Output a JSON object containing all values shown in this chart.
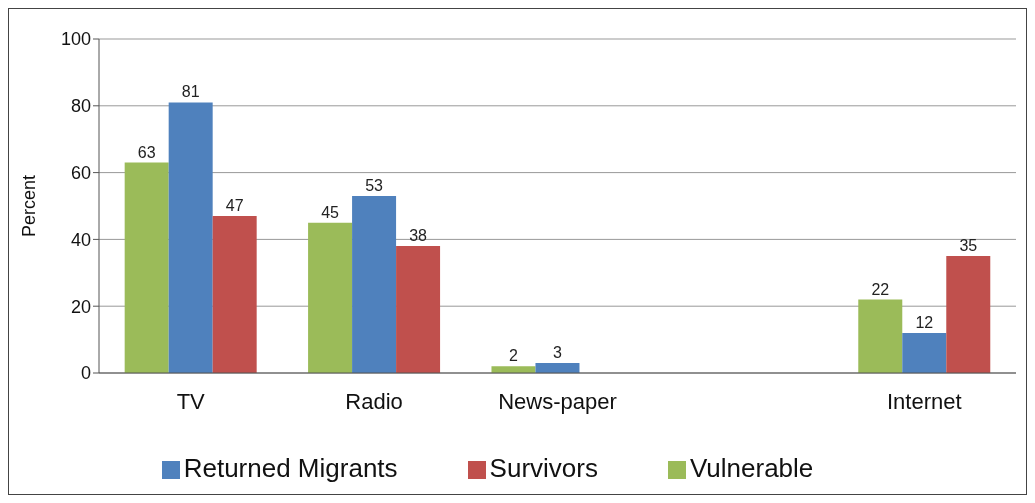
{
  "chart_data": {
    "type": "bar",
    "ylabel": "Percent",
    "categories": [
      "TV",
      "Radio",
      "News-paper",
      null,
      "Internet"
    ],
    "series": [
      {
        "name": "Vulnerable",
        "color": "#9bbb59",
        "values": [
          63,
          45,
          2,
          null,
          22
        ]
      },
      {
        "name": "Returned Migrants",
        "color": "#4f81bd",
        "values": [
          81,
          53,
          3,
          null,
          12
        ]
      },
      {
        "name": "Survivors",
        "color": "#c0504d",
        "values": [
          47,
          38,
          null,
          null,
          35
        ]
      }
    ],
    "ylim": [
      0,
      100
    ],
    "yticks": [
      0,
      20,
      40,
      60,
      80,
      100
    ],
    "grid": "y",
    "legend": "bottom",
    "data_labels": true
  }
}
